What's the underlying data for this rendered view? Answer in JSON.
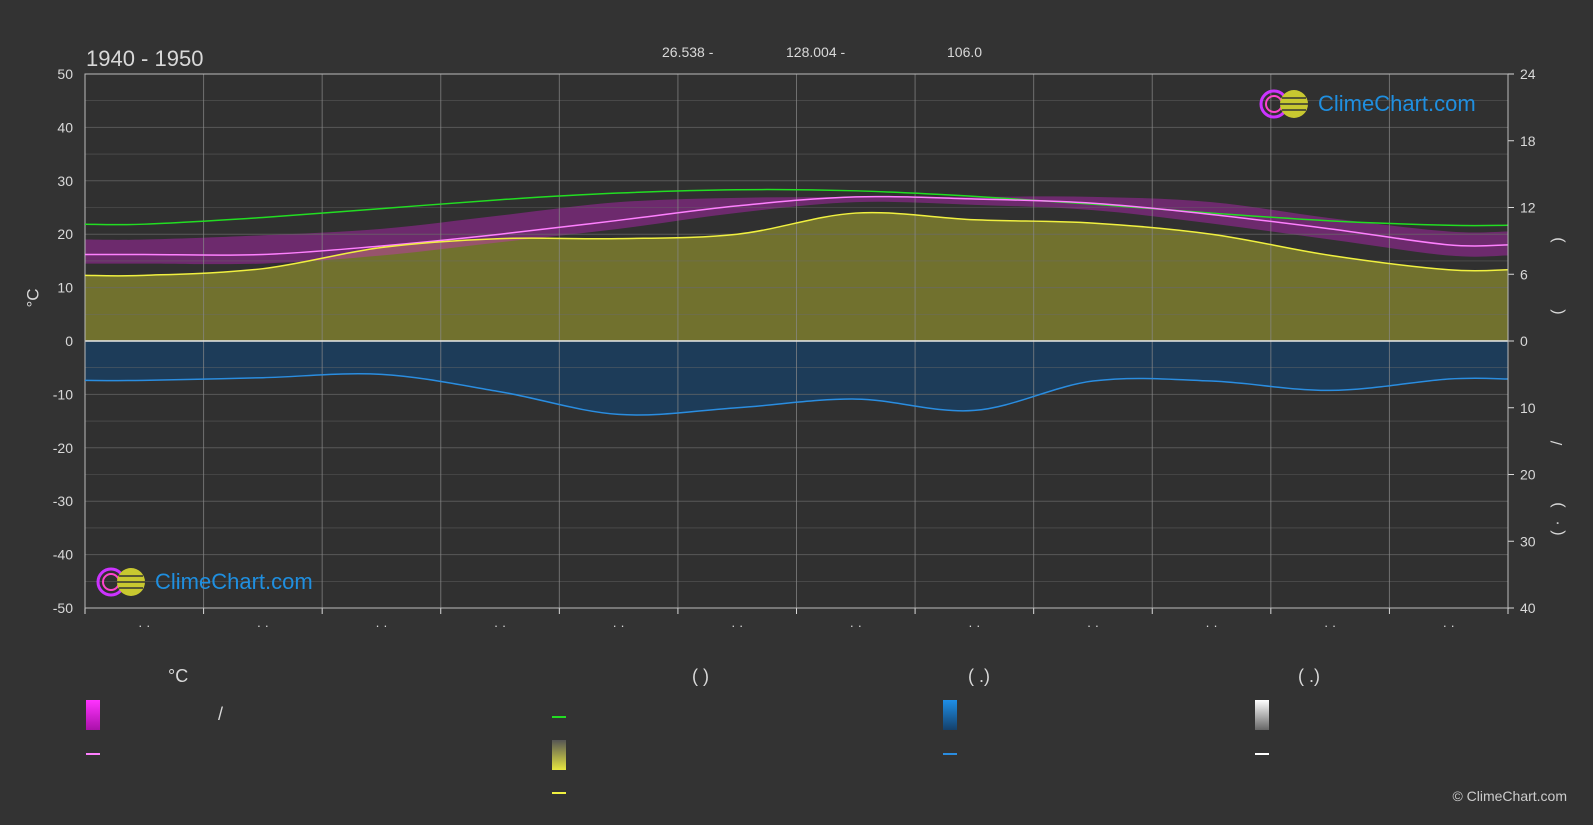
{
  "header": {
    "period": "1940 - 1950",
    "lat": "26.538 -",
    "lon": "128.004 -",
    "elevation": "106.0"
  },
  "axes": {
    "left_unit": "°C",
    "left_ticks": [
      "50",
      "40",
      "30",
      "20",
      "10",
      "0",
      "-10",
      "-20",
      "-30",
      "-40",
      "-50"
    ],
    "right_ticks_top": [
      "24",
      "18",
      "12",
      "6",
      "0"
    ],
    "right_ticks_bottom": [
      "10",
      "20",
      "30",
      "40"
    ],
    "right_labels": [
      ")",
      "(",
      "/",
      ")",
      "( ·"
    ],
    "month_labels": [
      "· ·",
      "· ·",
      "· ·",
      "· ·",
      "· ·",
      "· ·",
      "· ·",
      "· ·",
      "· ·",
      "· ·",
      "· ·",
      "· ·"
    ]
  },
  "legend": {
    "col1_head": "°C",
    "col2_head": "(          )",
    "col3_head": "(   .)",
    "col4_head": "(   .)",
    "slash": "/"
  },
  "logo_text": "ClimeChart.com",
  "copyright": "© ClimeChart.com",
  "colors": {
    "background": "#333333",
    "temp_band": "#e020e0",
    "mean_temp": "#ff80ff",
    "daylight": "#22dd22",
    "sunshine": "#e6e640",
    "sunshine_line": "#f0f040",
    "precip": "#1e7fd0",
    "precip_line": "#2a8de0",
    "snow": "#ffffff",
    "grid": "#6a6a6a",
    "axis_text": "#d9d9d9"
  },
  "chart_data": {
    "type": "line",
    "months": 12,
    "ylim_left": [
      -50,
      50
    ],
    "ylim_right_top": [
      0,
      24
    ],
    "ylim_right_bottom": [
      0,
      40
    ],
    "series": [
      {
        "key": "daylight_hours",
        "values": [
          10.5,
          11.1,
          11.9,
          12.7,
          13.3,
          13.6,
          13.5,
          13.0,
          12.3,
          11.5,
          10.8,
          10.4
        ]
      },
      {
        "key": "mean_temperature_c",
        "values": [
          16.2,
          16.2,
          17.8,
          20.0,
          22.6,
          25.3,
          27.0,
          26.6,
          25.8,
          23.7,
          21.0,
          18.0
        ]
      },
      {
        "key": "daily_max_range_c",
        "values": [
          19.0,
          19.8,
          21.0,
          23.5,
          26.0,
          26.8,
          27.0,
          27.0,
          27.0,
          26.0,
          23.0,
          20.5
        ]
      },
      {
        "key": "daily_min_range_c",
        "values": [
          14.5,
          14.5,
          16.0,
          18.5,
          21.0,
          24.0,
          26.0,
          25.5,
          24.5,
          22.0,
          19.0,
          16.0
        ]
      },
      {
        "key": "sunshine_hours",
        "values": [
          5.9,
          6.5,
          8.4,
          9.2,
          9.2,
          9.6,
          11.5,
          10.9,
          10.6,
          9.6,
          7.7,
          6.4
        ]
      },
      {
        "key": "precipitation_mm",
        "values": [
          5.9,
          5.5,
          5.0,
          7.6,
          11.0,
          10.0,
          8.7,
          10.4,
          6.0,
          6.0,
          7.4,
          5.7
        ]
      }
    ]
  }
}
